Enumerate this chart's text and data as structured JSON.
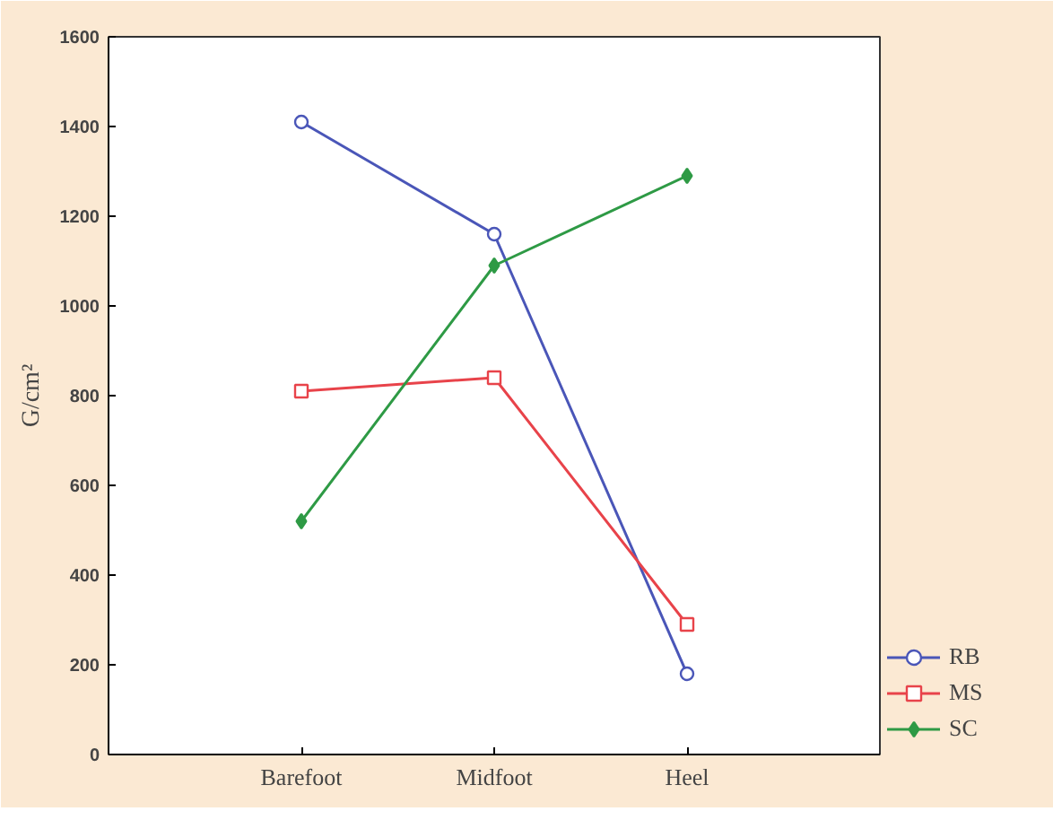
{
  "chart_data": {
    "type": "line",
    "ylabel": "G/cm²",
    "categories": [
      "Barefoot",
      "Midfoot",
      "Heel"
    ],
    "series": [
      {
        "name": "RB",
        "color": "#4a56b8",
        "values": [
          1410,
          1160,
          180
        ],
        "marker": "circle"
      },
      {
        "name": "MS",
        "color": "#e8434a",
        "values": [
          810,
          840,
          290
        ],
        "marker": "square"
      },
      {
        "name": "SC",
        "color": "#2e9a45",
        "values": [
          520,
          1090,
          1290
        ],
        "marker": "diamond"
      }
    ],
    "ylim": [
      0,
      1600
    ],
    "yticks": [
      0,
      200,
      400,
      600,
      800,
      1000,
      1200,
      1400,
      1600
    ],
    "grid": false,
    "legend": "bottom right",
    "line_style": "solid"
  }
}
